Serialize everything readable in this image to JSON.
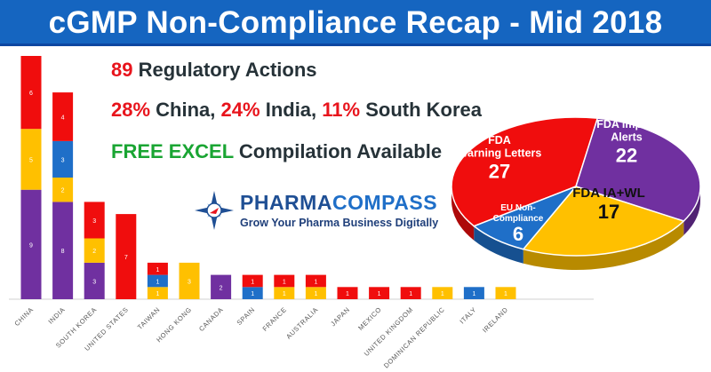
{
  "header": {
    "title": "cGMP Non-Compliance Recap - Mid 2018"
  },
  "headline": {
    "line1_num": "89",
    "line1_text": "Regulatory Actions",
    "china_pct": "28%",
    "china": "China,",
    "india_pct": "24%",
    "india": "India,",
    "korea_pct": "11%",
    "korea": "South Korea",
    "excel_highlight": "FREE EXCEL",
    "excel_text": "Compilation Available"
  },
  "logo": {
    "name_part1": "PHARMA",
    "name_part2": "COMPASS",
    "tagline": "Grow Your Pharma Business Digitally"
  },
  "colors": {
    "title_bar": "#1565c0",
    "red": "#f00d0d",
    "yellow": "#ffc000",
    "blue": "#1f6fc8",
    "purple": "#7030a0",
    "highlight_red": "#e8141c",
    "highlight_green": "#1aa533"
  },
  "chart_data": [
    {
      "type": "bar",
      "stacked": true,
      "categories": [
        "CHINA",
        "INDIA",
        "SOUTH KOREA",
        "UNITED STATES",
        "TAIWAN",
        "HONG KONG",
        "CANADA",
        "SPAIN",
        "FRANCE",
        "AUSTRALIA",
        "JAPAN",
        "MEXICO",
        "UNITED KINGDOM",
        "DOMINICAN REPUBLIC",
        "ITALY",
        "IRELAND"
      ],
      "series": [
        {
          "color": "#7030a0",
          "values": [
            9,
            8,
            3,
            0,
            0,
            0,
            2,
            0,
            0,
            0,
            0,
            0,
            0,
            0,
            0,
            0
          ]
        },
        {
          "color": "#ffc000",
          "values": [
            5,
            2,
            2,
            0,
            1,
            3,
            0,
            0,
            1,
            1,
            0,
            0,
            0,
            1,
            0,
            1
          ]
        },
        {
          "color": "#1f6fc8",
          "values": [
            0,
            3,
            0,
            0,
            1,
            0,
            0,
            1,
            0,
            0,
            0,
            0,
            0,
            0,
            1,
            0
          ]
        },
        {
          "color": "#f00d0d",
          "values": [
            6,
            4,
            3,
            7,
            1,
            0,
            0,
            1,
            1,
            1,
            1,
            1,
            1,
            0,
            0,
            0
          ]
        }
      ]
    },
    {
      "type": "pie",
      "slices": [
        {
          "label": "FDA Warning Letters",
          "value": 27,
          "color": "#f00d0d"
        },
        {
          "label": "FDA Import Alerts",
          "value": 22,
          "color": "#7030a0"
        },
        {
          "label": "FDA IA+WL",
          "value": 17,
          "color": "#ffc000"
        },
        {
          "label": "EU Non-Compliance",
          "value": 6,
          "color": "#1f6fc8"
        }
      ]
    }
  ]
}
